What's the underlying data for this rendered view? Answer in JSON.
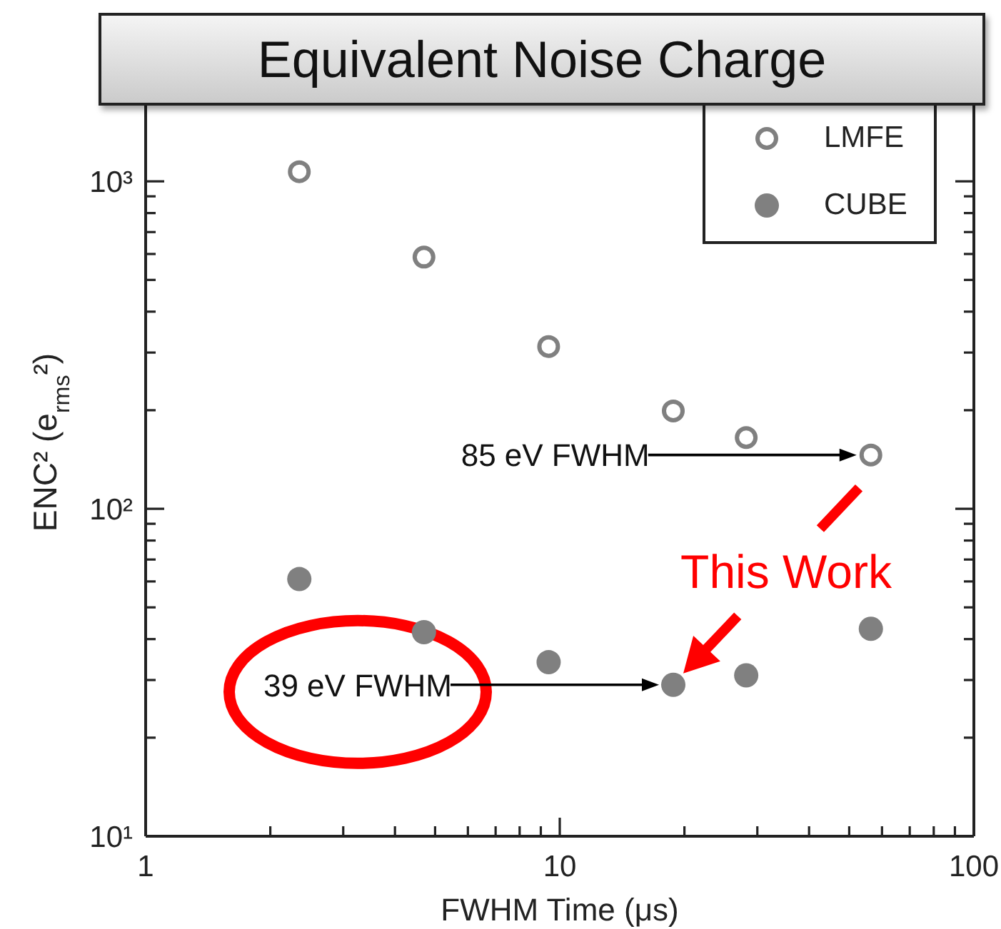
{
  "chart_data": {
    "type": "scatter",
    "title": "Equivalent Noise Charge",
    "xlabel": "FWHM Time (μs)",
    "ylabel": "ENC² (e$_{rms}$²)",
    "x": [
      2.35,
      4.7,
      9.4,
      18.8,
      28.2,
      56.4
    ],
    "series": [
      {
        "name": "LMFE",
        "color": "#808080",
        "values": [
          1070,
          587,
          313,
          199,
          165,
          146
        ]
      },
      {
        "name": "CUBE",
        "color": "#808080",
        "values": [
          61,
          42,
          34,
          29,
          31,
          43
        ]
      }
    ],
    "log": "xy",
    "xlim": [
      1,
      100
    ],
    "xticks": [
      1,
      {
        "value": 2,
        "label": null
      },
      {
        "value": 3,
        "label": null
      },
      {
        "value": 4,
        "label": null
      },
      {
        "value": 5,
        "label": null
      },
      {
        "value": 6,
        "label": null
      },
      {
        "value": 7,
        "label": null
      },
      {
        "value": 8,
        "label": null
      },
      {
        "value": 9,
        "label": null
      },
      10,
      {
        "value": 20,
        "label": null
      },
      {
        "value": 30,
        "label": null
      },
      {
        "value": 40,
        "label": null
      },
      {
        "value": 50,
        "label": null
      },
      {
        "value": 60,
        "label": null
      },
      {
        "value": 70,
        "label": null
      },
      {
        "value": 80,
        "label": null
      },
      {
        "value": 90,
        "label": null
      },
      100
    ],
    "ylim": [
      10,
      2000
    ],
    "yticks": [
      {
        "value": 10,
        "label": "10¹"
      },
      {
        "value": 20,
        "label": null
      },
      {
        "value": 30,
        "label": null
      },
      {
        "value": 40,
        "label": null
      },
      {
        "value": 50,
        "label": null
      },
      {
        "value": 60,
        "label": null
      },
      {
        "value": 70,
        "label": null
      },
      {
        "value": 80,
        "label": null
      },
      {
        "value": 90,
        "label": null
      },
      {
        "value": 100,
        "label": "10²"
      },
      {
        "value": 200,
        "label": null
      },
      {
        "value": 300,
        "label": null
      },
      {
        "value": 400,
        "label": null
      },
      {
        "value": 500,
        "label": null
      },
      {
        "value": 600,
        "label": null
      },
      {
        "value": 700,
        "label": null
      },
      {
        "value": 800,
        "label": null
      },
      {
        "value": 900,
        "label": null
      },
      {
        "value": 1000,
        "label": "10³"
      }
    ],
    "marker": "circle",
    "legend": "top right",
    "annotations": [
      "85 eV FWHM",
      "39 eV FWHM",
      {
        "text": "This Work",
        "x": 18.8,
        "y": 29
      }
    ]
  }
}
